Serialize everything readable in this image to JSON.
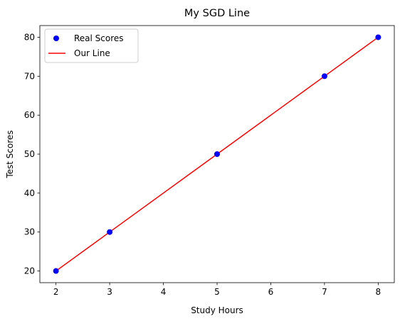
{
  "chart_data": {
    "type": "scatter",
    "title": "My SGD Line",
    "xlabel": "Study Hours",
    "ylabel": "Test Scores",
    "xlim": [
      1.7,
      8.3
    ],
    "ylim": [
      17,
      83
    ],
    "xticks": [
      2,
      3,
      4,
      5,
      6,
      7,
      8
    ],
    "yticks": [
      20,
      30,
      40,
      50,
      60,
      70,
      80
    ],
    "grid": false,
    "legend_position": "upper left",
    "series": [
      {
        "name": "Real Scores",
        "kind": "scatter",
        "color": "#0000ff",
        "x": [
          2,
          3,
          5,
          7,
          8
        ],
        "y": [
          20,
          30,
          50,
          70,
          80
        ]
      },
      {
        "name": "Our Line",
        "kind": "line",
        "color": "#ff0000",
        "x": [
          2,
          3,
          5,
          7,
          8
        ],
        "y": [
          20,
          30,
          50,
          70,
          80
        ]
      }
    ]
  }
}
